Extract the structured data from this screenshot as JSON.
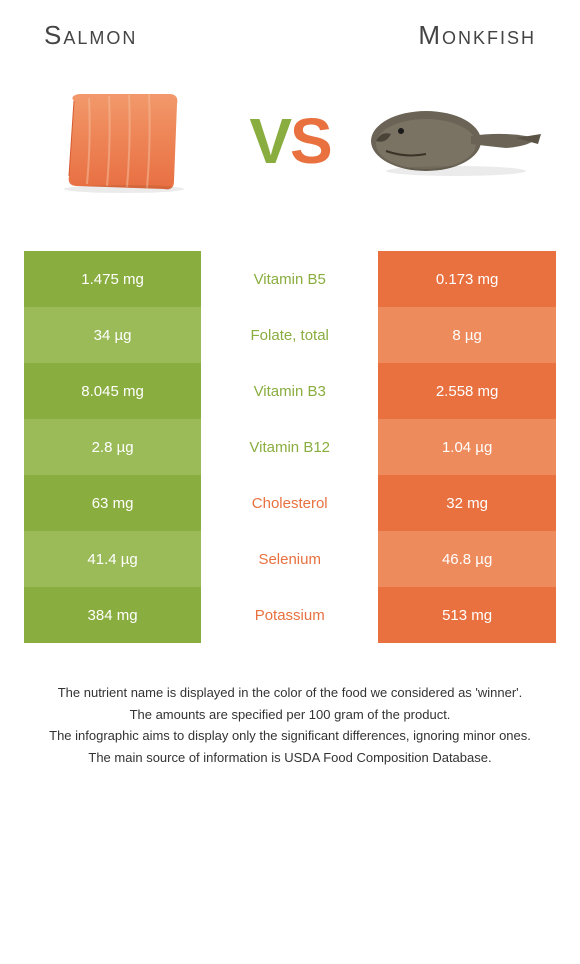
{
  "header": {
    "left_title": "Salmon",
    "right_title": "Monkfish"
  },
  "vs": {
    "v": "V",
    "s": "S"
  },
  "colors": {
    "left_odd": "#8aad3f",
    "left_even": "#9bbb59",
    "right_odd": "#e8713f",
    "right_even": "#ed8b5c",
    "text": "#ffffff"
  },
  "rows": [
    {
      "left": "1.475 mg",
      "label": "Vitamin B5",
      "right": "0.173 mg",
      "winner": "left"
    },
    {
      "left": "34 µg",
      "label": "Folate, total",
      "right": "8 µg",
      "winner": "left"
    },
    {
      "left": "8.045 mg",
      "label": "Vitamin B3",
      "right": "2.558 mg",
      "winner": "left"
    },
    {
      "left": "2.8 µg",
      "label": "Vitamin B12",
      "right": "1.04 µg",
      "winner": "left"
    },
    {
      "left": "63 mg",
      "label": "Cholesterol",
      "right": "32 mg",
      "winner": "right"
    },
    {
      "left": "41.4 µg",
      "label": "Selenium",
      "right": "46.8 µg",
      "winner": "right"
    },
    {
      "left": "384 mg",
      "label": "Potassium",
      "right": "513 mg",
      "winner": "right"
    }
  ],
  "footer": {
    "l1": "The nutrient name is displayed in the color of the food we considered as 'winner'.",
    "l2": "The amounts are specified per 100 gram of the product.",
    "l3": "The infographic aims to display only the significant differences, ignoring minor ones.",
    "l4": "The main source of information is USDA Food Composition Database."
  }
}
